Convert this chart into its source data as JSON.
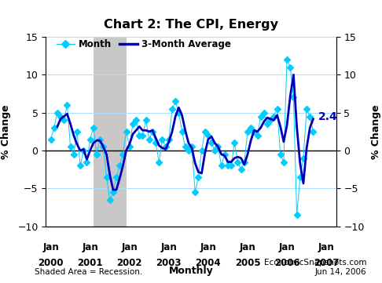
{
  "title": "Chart 2: The CPI, Energy",
  "ylabel": "% Change",
  "legend_month": "Month",
  "legend_avg": "3-Month Average",
  "annotation": "2.4",
  "footer_left": "Shaded Area = Recession.",
  "footer_center": "Monthly",
  "footer_right": "EconomicSnapshots.com\nJun 14, 2006",
  "ylim": [
    -10,
    15
  ],
  "yticks": [
    -10,
    -5,
    0,
    5,
    10,
    15
  ],
  "recession_start": 13,
  "recession_end": 23,
  "background_color": "#ffffff",
  "recession_color": "#c8c8c8",
  "line_month_color": "#00ccff",
  "line_avg_color": "#0000bb",
  "grid_color": "#aaddff",
  "monthly_data": [
    1.5,
    3.0,
    5.0,
    4.5,
    4.0,
    6.0,
    0.5,
    -0.5,
    2.5,
    -2.0,
    0.0,
    -1.5,
    1.5,
    3.0,
    -0.5,
    1.5,
    0.5,
    -3.5,
    -6.5,
    -5.5,
    -3.5,
    -2.0,
    -0.5,
    2.5,
    0.5,
    3.5,
    4.0,
    2.0,
    2.0,
    4.0,
    1.5,
    2.5,
    1.0,
    -1.5,
    1.5,
    0.5,
    1.5,
    5.5,
    6.5,
    5.0,
    2.5,
    0.5,
    0.0,
    0.5,
    -5.5,
    -3.5,
    0.0,
    2.5,
    2.0,
    1.0,
    0.0,
    0.5,
    -2.0,
    -0.5,
    -2.0,
    -2.0,
    1.0,
    -1.5,
    -2.5,
    -1.5,
    2.5,
    3.0,
    2.5,
    2.0,
    4.5,
    5.0,
    3.5,
    4.0,
    4.5,
    5.5,
    -0.5,
    -1.5,
    12.0,
    11.0,
    7.0,
    -8.5,
    -3.5,
    -1.0,
    5.5,
    4.5,
    2.5
  ],
  "xlim_left": -1.5,
  "xlim_right": 87
}
